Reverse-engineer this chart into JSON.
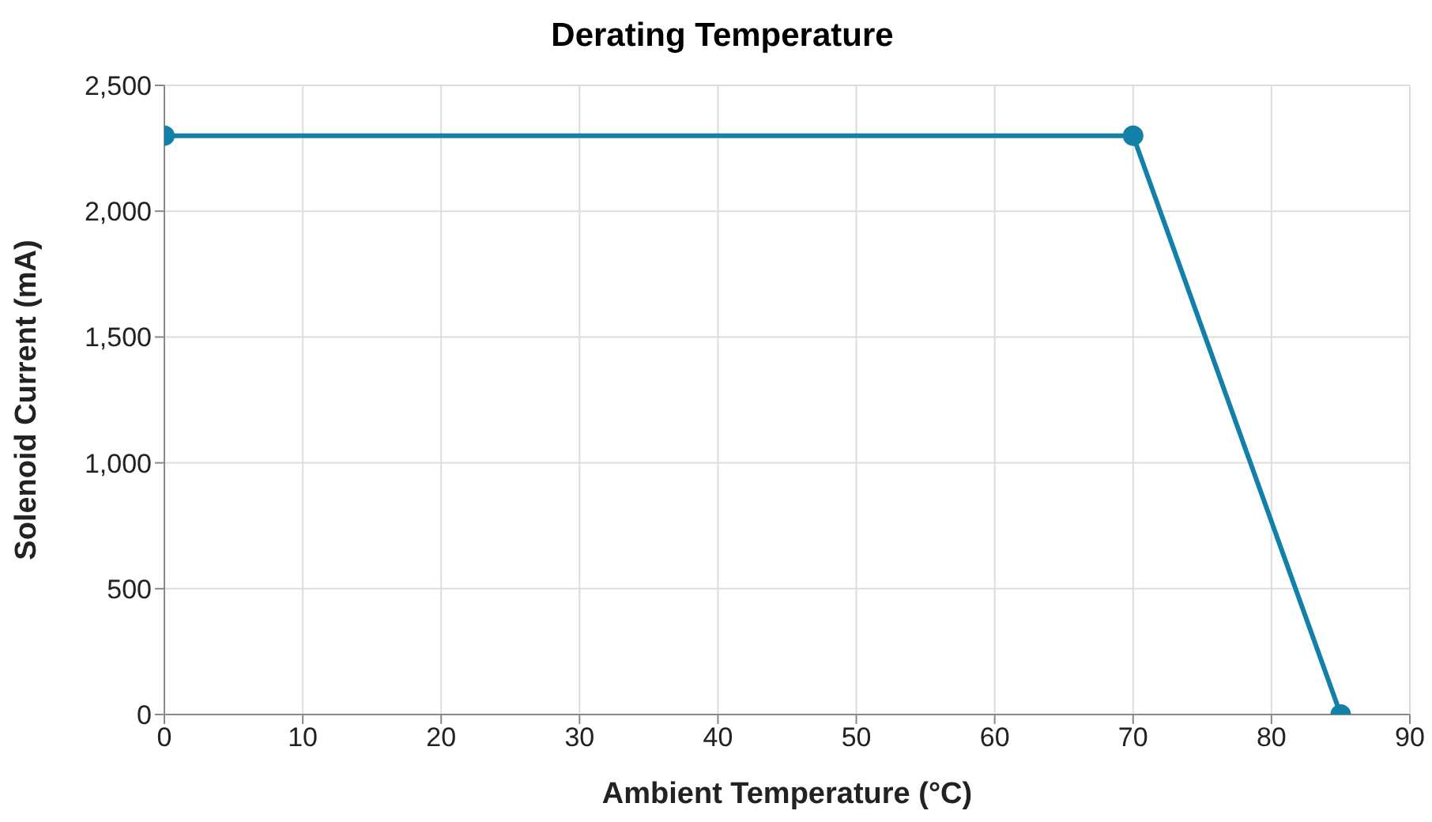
{
  "chart_data": {
    "type": "line",
    "title": "Derating Temperature",
    "xlabel": "Ambient Temperature (°C)",
    "ylabel": "Solenoid Current (mA)",
    "x": [
      0,
      70,
      85
    ],
    "series": [
      {
        "color": "#1380a8",
        "values": [
          2300,
          2300,
          0
        ]
      }
    ],
    "xlim": [
      0,
      90
    ],
    "xticks": [
      0,
      10,
      20,
      30,
      40,
      50,
      60,
      70,
      80,
      90
    ],
    "ylim": [
      0,
      2500
    ],
    "yticks": [
      0,
      500,
      {
        "value": 1000,
        "label": "1,000"
      },
      {
        "value": 1500,
        "label": "1,500"
      },
      {
        "value": 2000,
        "label": "2,000"
      },
      {
        "value": 2500,
        "label": "2,500"
      }
    ],
    "grid": true,
    "legend": false,
    "marker": "circle",
    "line_style": "solid"
  }
}
